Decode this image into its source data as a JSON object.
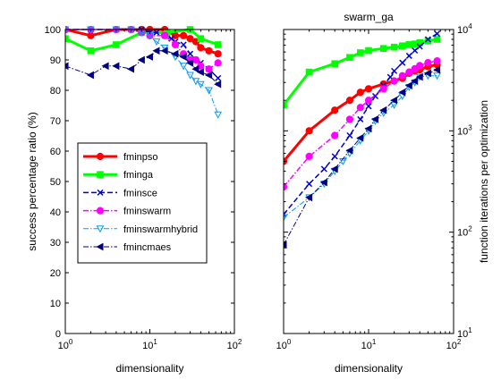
{
  "chart_data": [
    {
      "type": "line",
      "title": "",
      "xlabel": "dimensionality",
      "ylabel": "success percentage ratio (%)",
      "xscale": "log",
      "xlim": [
        1,
        100
      ],
      "ylim": [
        0,
        100
      ],
      "xticks": [
        {
          "value": 1,
          "base": "10",
          "exp": "0"
        },
        {
          "value": 10,
          "base": "10",
          "exp": "1"
        },
        {
          "value": 100,
          "base": "10",
          "exp": "2"
        }
      ],
      "yticks": [
        0,
        10,
        20,
        30,
        40,
        50,
        60,
        70,
        80,
        90,
        100
      ],
      "legend_position": "middle-left",
      "series": [
        {
          "name": "fminpso",
          "color": "#ff0000",
          "dash": "solid",
          "width": 3,
          "marker": "dot",
          "x": [
            1,
            2,
            4,
            6,
            8,
            10,
            15,
            20,
            25,
            30,
            35,
            40,
            50,
            64
          ],
          "y": [
            100,
            98,
            100,
            100,
            100,
            100,
            100,
            98,
            98,
            97,
            96,
            94,
            93,
            92
          ]
        },
        {
          "name": "fminga",
          "color": "#00ff00",
          "dash": "solid",
          "width": 3,
          "marker": "square",
          "x": [
            1,
            2,
            4,
            8,
            16,
            30,
            40,
            64
          ],
          "y": [
            97,
            93,
            95,
            99,
            99,
            100,
            97,
            95
          ]
        },
        {
          "name": "fminsce",
          "color": "#0000cc",
          "dash": "dashed",
          "width": 1.5,
          "marker": "x",
          "x": [
            1,
            2,
            4,
            6,
            8,
            10,
            12,
            15,
            18,
            20,
            25,
            30,
            35,
            40,
            50,
            64
          ],
          "y": [
            100,
            100,
            100,
            100,
            100,
            99,
            99,
            98,
            97,
            96,
            95,
            92,
            90,
            89,
            87,
            84
          ]
        },
        {
          "name": "fminswarm",
          "color": "#ff00ff",
          "dash": "dashdot",
          "width": 1.5,
          "marker": "dot",
          "x": [
            1,
            2,
            4,
            6,
            8,
            10,
            15,
            20,
            25,
            30,
            35,
            40,
            50,
            64
          ],
          "y": [
            100,
            100,
            100,
            100,
            99,
            98,
            98,
            95,
            92,
            90,
            90,
            88,
            87,
            89
          ]
        },
        {
          "name": "fminswarmhybrid",
          "color": "#0099ff",
          "dash": "dashdot",
          "width": 1,
          "marker": "triangle-down",
          "x": [
            1,
            2,
            4,
            6,
            8,
            10,
            12,
            15,
            20,
            25,
            30,
            35,
            40,
            50,
            64
          ],
          "y": [
            100,
            100,
            100,
            100,
            99,
            98,
            96,
            94,
            91,
            88,
            85,
            83,
            82,
            80,
            72
          ]
        },
        {
          "name": "fmincmaes",
          "color": "#000080",
          "dash": "dashdot",
          "width": 1,
          "marker": "triangle-left",
          "x": [
            1,
            2,
            3,
            4,
            6,
            8,
            10,
            12,
            15,
            20,
            25,
            30,
            35,
            40,
            50,
            64
          ],
          "y": [
            88,
            85,
            88,
            88,
            87,
            90,
            91,
            93,
            93,
            92,
            91,
            89,
            87,
            86,
            85,
            82
          ]
        }
      ]
    },
    {
      "type": "line",
      "title": "swarm_ga",
      "xlabel": "dimensionality",
      "ylabel": "function iterations per optimization",
      "xscale": "log",
      "yscale": "log",
      "yaxis_side": "right",
      "xlim": [
        1,
        100
      ],
      "ylim": [
        10,
        10000
      ],
      "xticks": [
        {
          "value": 1,
          "base": "10",
          "exp": "0"
        },
        {
          "value": 10,
          "base": "10",
          "exp": "1"
        },
        {
          "value": 100,
          "base": "10",
          "exp": "2"
        }
      ],
      "yticks": [
        {
          "value": 10,
          "base": "10",
          "exp": "1"
        },
        {
          "value": 100,
          "base": "10",
          "exp": "2"
        },
        {
          "value": 1000,
          "base": "10",
          "exp": "3"
        },
        {
          "value": 10000,
          "base": "10",
          "exp": "4"
        }
      ],
      "series": [
        {
          "name": "fminpso",
          "color": "#ff0000",
          "dash": "solid",
          "width": 3,
          "marker": "dot",
          "x": [
            1,
            2,
            4,
            6,
            8,
            10,
            15,
            20,
            25,
            30,
            35,
            40,
            50,
            64
          ],
          "y": [
            500,
            1000,
            1600,
            2000,
            2400,
            2600,
            2900,
            3100,
            3300,
            3700,
            3900,
            4000,
            4300,
            4500
          ]
        },
        {
          "name": "fminga",
          "color": "#00ff00",
          "dash": "solid",
          "width": 3,
          "marker": "square",
          "x": [
            1,
            2,
            4,
            6,
            8,
            10,
            15,
            20,
            25,
            30,
            35,
            40,
            50,
            64
          ],
          "y": [
            1800,
            3800,
            4600,
            5300,
            5900,
            6200,
            6500,
            6700,
            6900,
            7100,
            7200,
            7400,
            7700,
            8000
          ]
        },
        {
          "name": "fminsce",
          "color": "#0000cc",
          "dash": "dashed",
          "width": 1.5,
          "marker": "x",
          "x": [
            1,
            2,
            3,
            4,
            6,
            8,
            10,
            12,
            15,
            18,
            20,
            25,
            30,
            35,
            40,
            50,
            64
          ],
          "y": [
            150,
            300,
            420,
            560,
            900,
            1300,
            1750,
            2200,
            2800,
            3400,
            3900,
            4700,
            5500,
            6200,
            6800,
            8000,
            9100
          ]
        },
        {
          "name": "fminswarm",
          "color": "#ff00ff",
          "dash": "dashdot",
          "width": 1.5,
          "marker": "dot",
          "x": [
            1,
            2,
            4,
            6,
            8,
            10,
            15,
            20,
            25,
            30,
            35,
            40,
            50,
            64
          ],
          "y": [
            280,
            560,
            900,
            1300,
            1700,
            2000,
            2600,
            3100,
            3500,
            3800,
            4100,
            4400,
            4700,
            4900
          ]
        },
        {
          "name": "fminswarmhybrid",
          "color": "#0099ff",
          "dash": "dashdot",
          "width": 1,
          "marker": "triangle-down",
          "x": [
            1,
            2,
            3,
            4,
            5,
            6,
            8,
            10,
            12,
            15,
            20,
            25,
            30,
            35,
            40,
            50,
            64
          ],
          "y": [
            140,
            220,
            300,
            400,
            500,
            600,
            800,
            1000,
            1250,
            1500,
            1800,
            2200,
            2700,
            3000,
            3400,
            3500,
            3500
          ]
        },
        {
          "name": "fmincmaes",
          "color": "#000080",
          "dash": "dashdot",
          "width": 1,
          "marker": "triangle-left",
          "x": [
            1,
            2,
            3,
            4,
            6,
            8,
            10,
            12,
            15,
            20,
            25,
            30,
            35,
            40,
            50,
            64
          ],
          "y": [
            75,
            220,
            310,
            420,
            640,
            850,
            1050,
            1300,
            1600,
            2000,
            2400,
            2800,
            3100,
            3400,
            3700,
            4000
          ]
        }
      ]
    }
  ]
}
